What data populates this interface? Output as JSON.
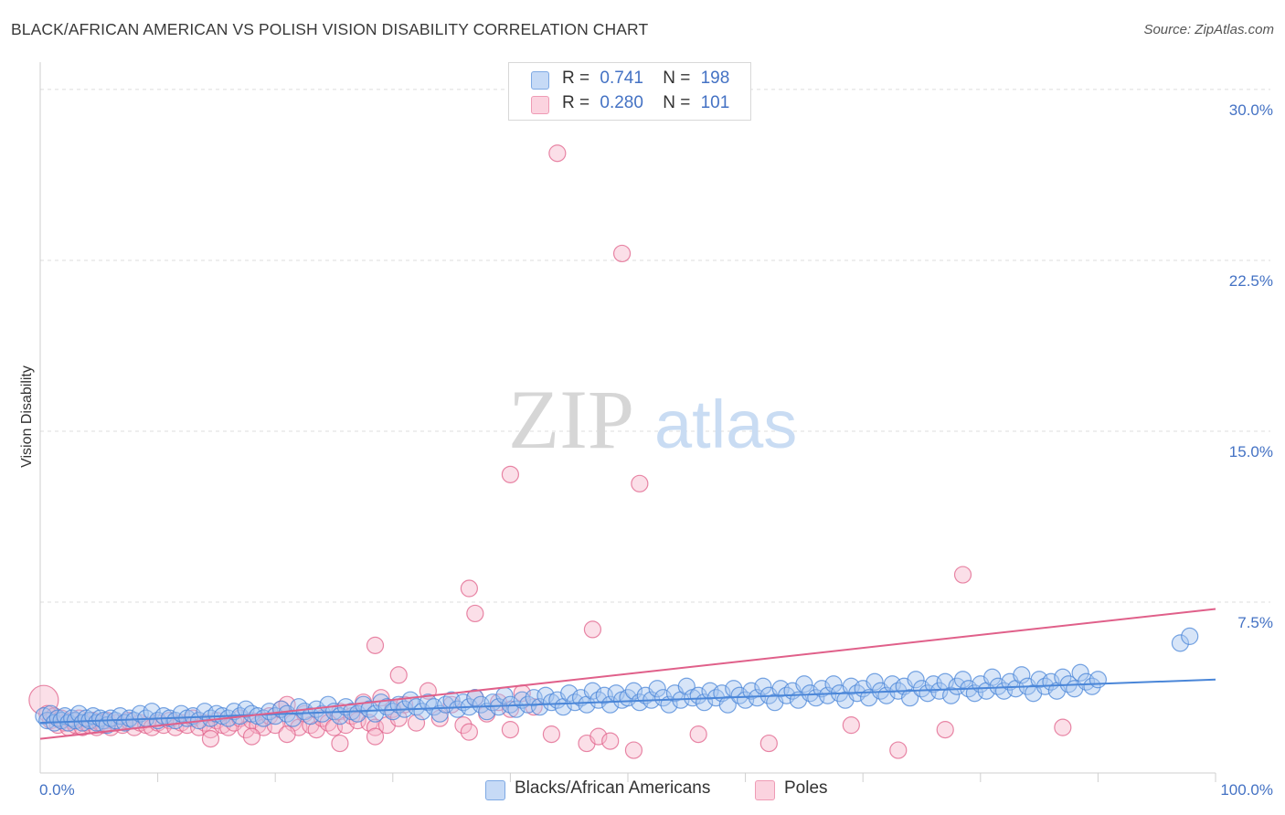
{
  "title": "BLACK/AFRICAN AMERICAN VS POLISH VISION DISABILITY CORRELATION CHART",
  "source": "Source: ZipAtlas.com",
  "watermark": {
    "zip": "ZIP",
    "atlas": "atlas"
  },
  "legend": {
    "rows": [
      {
        "r_label": "R =",
        "r_value": "0.741",
        "n_label": "N =",
        "n_value": "198",
        "color": "#a7c5f0"
      },
      {
        "r_label": "R =",
        "r_value": "0.280",
        "n_label": "N =",
        "n_value": "101",
        "color": "#f6b8cb"
      }
    ]
  },
  "bottom_legend": [
    {
      "label": "Blacks/African Americans",
      "color": "#a7c5f0"
    },
    {
      "label": "Poles",
      "color": "#f6b8cb"
    }
  ],
  "chart_data": {
    "type": "scatter",
    "title": "BLACK/AFRICAN AMERICAN VS POLISH VISION DISABILITY CORRELATION CHART",
    "ylabel": "Vision Disability",
    "xlabel": "",
    "xlim": [
      0,
      100
    ],
    "ylim": [
      0,
      31.2
    ],
    "y_ticks": [
      7.5,
      15.0,
      22.5,
      30.0
    ],
    "y_tick_labels": [
      "7.5%",
      "15.0%",
      "22.5%",
      "30.0%"
    ],
    "x_tick_labels": [
      "0.0%",
      "100.0%"
    ],
    "grid": "horizontal dashed",
    "legend_position": "top-center",
    "series": [
      {
        "name": "Blacks/African Americans",
        "color": "#4a86d8",
        "fill": "#a7c5f0",
        "trend": {
          "x": [
            0,
            100
          ],
          "y": [
            2.2,
            4.1
          ]
        },
        "points": [
          [
            0.3,
            2.5
          ],
          [
            0.6,
            2.3
          ],
          [
            0.9,
            2.6
          ],
          [
            1.2,
            2.2
          ],
          [
            1.5,
            2.4
          ],
          [
            1.8,
            2.3
          ],
          [
            2.1,
            2.5
          ],
          [
            2.4,
            2.2
          ],
          [
            2.7,
            2.4
          ],
          [
            3.0,
            2.3
          ],
          [
            3.3,
            2.6
          ],
          [
            3.6,
            2.2
          ],
          [
            3.9,
            2.4
          ],
          [
            4.2,
            2.3
          ],
          [
            4.5,
            2.5
          ],
          [
            4.8,
            2.2
          ],
          [
            5.1,
            2.4
          ],
          [
            5.4,
            2.3
          ],
          [
            5.7,
            2.1
          ],
          [
            6.0,
            2.4
          ],
          [
            6.4,
            2.3
          ],
          [
            6.8,
            2.5
          ],
          [
            7.2,
            2.2
          ],
          [
            7.6,
            2.4
          ],
          [
            8.0,
            2.3
          ],
          [
            8.5,
            2.6
          ],
          [
            9.0,
            2.4
          ],
          [
            9.5,
            2.7
          ],
          [
            10.0,
            2.3
          ],
          [
            10.5,
            2.5
          ],
          [
            11.0,
            2.4
          ],
          [
            11.5,
            2.3
          ],
          [
            12.0,
            2.6
          ],
          [
            12.5,
            2.4
          ],
          [
            13.0,
            2.5
          ],
          [
            13.5,
            2.3
          ],
          [
            14.0,
            2.7
          ],
          [
            14.5,
            2.4
          ],
          [
            15.0,
            2.6
          ],
          [
            15.5,
            2.5
          ],
          [
            16.0,
            2.4
          ],
          [
            16.5,
            2.7
          ],
          [
            17.0,
            2.5
          ],
          [
            17.5,
            2.8
          ],
          [
            18.0,
            2.6
          ],
          [
            18.5,
            2.5
          ],
          [
            19.0,
            2.4
          ],
          [
            19.5,
            2.7
          ],
          [
            20.0,
            2.5
          ],
          [
            20.5,
            2.8
          ],
          [
            21.0,
            2.6
          ],
          [
            21.5,
            2.4
          ],
          [
            22.0,
            2.9
          ],
          [
            22.5,
            2.7
          ],
          [
            23.0,
            2.5
          ],
          [
            23.5,
            2.8
          ],
          [
            24.0,
            2.6
          ],
          [
            24.5,
            3.0
          ],
          [
            25.0,
            2.7
          ],
          [
            25.5,
            2.5
          ],
          [
            26.0,
            2.9
          ],
          [
            26.5,
            2.7
          ],
          [
            27.0,
            2.6
          ],
          [
            27.5,
            3.0
          ],
          [
            28.0,
            2.8
          ],
          [
            28.5,
            2.6
          ],
          [
            29.0,
            3.1
          ],
          [
            29.5,
            2.9
          ],
          [
            30.0,
            2.7
          ],
          [
            30.5,
            3.0
          ],
          [
            31.0,
            2.8
          ],
          [
            31.5,
            3.2
          ],
          [
            32.0,
            2.9
          ],
          [
            32.5,
            2.7
          ],
          [
            33.0,
            3.1
          ],
          [
            33.5,
            2.9
          ],
          [
            34.0,
            2.6
          ],
          [
            34.5,
            3.0
          ],
          [
            35.0,
            3.2
          ],
          [
            35.5,
            2.8
          ],
          [
            36.0,
            3.1
          ],
          [
            36.5,
            2.9
          ],
          [
            37.0,
            3.3
          ],
          [
            37.5,
            3.0
          ],
          [
            38.0,
            2.7
          ],
          [
            38.5,
            3.1
          ],
          [
            39.0,
            2.9
          ],
          [
            39.5,
            3.4
          ],
          [
            40.0,
            3.0
          ],
          [
            40.5,
            2.8
          ],
          [
            41.0,
            3.2
          ],
          [
            41.5,
            3.0
          ],
          [
            42.0,
            3.3
          ],
          [
            42.5,
            2.9
          ],
          [
            43.0,
            3.4
          ],
          [
            43.5,
            3.1
          ],
          [
            44.0,
            3.2
          ],
          [
            44.5,
            2.9
          ],
          [
            45.0,
            3.5
          ],
          [
            45.5,
            3.1
          ],
          [
            46.0,
            3.3
          ],
          [
            46.5,
            3.0
          ],
          [
            47.0,
            3.6
          ],
          [
            47.5,
            3.2
          ],
          [
            48.0,
            3.4
          ],
          [
            48.5,
            3.0
          ],
          [
            49.0,
            3.5
          ],
          [
            49.5,
            3.2
          ],
          [
            50.0,
            3.3
          ],
          [
            50.5,
            3.6
          ],
          [
            51.0,
            3.1
          ],
          [
            51.5,
            3.4
          ],
          [
            52.0,
            3.2
          ],
          [
            52.5,
            3.7
          ],
          [
            53.0,
            3.3
          ],
          [
            53.5,
            3.0
          ],
          [
            54.0,
            3.5
          ],
          [
            54.5,
            3.2
          ],
          [
            55.0,
            3.8
          ],
          [
            55.5,
            3.3
          ],
          [
            56.0,
            3.4
          ],
          [
            56.5,
            3.1
          ],
          [
            57.0,
            3.6
          ],
          [
            57.5,
            3.3
          ],
          [
            58.0,
            3.5
          ],
          [
            58.5,
            3.0
          ],
          [
            59.0,
            3.7
          ],
          [
            59.5,
            3.4
          ],
          [
            60.0,
            3.2
          ],
          [
            60.5,
            3.6
          ],
          [
            61.0,
            3.3
          ],
          [
            61.5,
            3.8
          ],
          [
            62.0,
            3.4
          ],
          [
            62.5,
            3.1
          ],
          [
            63.0,
            3.7
          ],
          [
            63.5,
            3.4
          ],
          [
            64.0,
            3.6
          ],
          [
            64.5,
            3.2
          ],
          [
            65.0,
            3.9
          ],
          [
            65.5,
            3.5
          ],
          [
            66.0,
            3.3
          ],
          [
            66.5,
            3.7
          ],
          [
            67.0,
            3.4
          ],
          [
            67.5,
            3.9
          ],
          [
            68.0,
            3.5
          ],
          [
            68.5,
            3.2
          ],
          [
            69.0,
            3.8
          ],
          [
            69.5,
            3.5
          ],
          [
            70.0,
            3.7
          ],
          [
            70.5,
            3.3
          ],
          [
            71.0,
            4.0
          ],
          [
            71.5,
            3.6
          ],
          [
            72.0,
            3.4
          ],
          [
            72.5,
            3.9
          ],
          [
            73.0,
            3.6
          ],
          [
            73.5,
            3.8
          ],
          [
            74.0,
            3.3
          ],
          [
            74.5,
            4.1
          ],
          [
            75.0,
            3.7
          ],
          [
            75.5,
            3.5
          ],
          [
            76.0,
            3.9
          ],
          [
            76.5,
            3.6
          ],
          [
            77.0,
            4.0
          ],
          [
            77.5,
            3.4
          ],
          [
            78.0,
            3.8
          ],
          [
            78.5,
            4.1
          ],
          [
            79.0,
            3.7
          ],
          [
            79.5,
            3.5
          ],
          [
            80.0,
            3.9
          ],
          [
            80.5,
            3.6
          ],
          [
            81.0,
            4.2
          ],
          [
            81.5,
            3.8
          ],
          [
            82.0,
            3.6
          ],
          [
            82.5,
            4.0
          ],
          [
            83.0,
            3.7
          ],
          [
            83.5,
            4.3
          ],
          [
            84.0,
            3.8
          ],
          [
            84.5,
            3.5
          ],
          [
            85.0,
            4.1
          ],
          [
            85.5,
            3.8
          ],
          [
            86.0,
            4.0
          ],
          [
            86.5,
            3.6
          ],
          [
            87.0,
            4.2
          ],
          [
            87.5,
            3.9
          ],
          [
            88.0,
            3.7
          ],
          [
            88.5,
            4.4
          ],
          [
            89.0,
            4.0
          ],
          [
            89.5,
            3.8
          ],
          [
            90.0,
            4.1
          ],
          [
            97.0,
            5.7
          ],
          [
            97.8,
            6.0
          ]
        ]
      },
      {
        "name": "Poles",
        "color": "#e0608a",
        "fill": "#f6b8cb",
        "trend": {
          "x": [
            0,
            100
          ],
          "y": [
            1.5,
            7.2
          ]
        },
        "points": [
          [
            0.3,
            3.2
          ],
          [
            0.6,
            2.6
          ],
          [
            0.9,
            2.3
          ],
          [
            1.2,
            2.5
          ],
          [
            1.5,
            2.1
          ],
          [
            1.8,
            2.4
          ],
          [
            2.1,
            2.2
          ],
          [
            2.4,
            2.0
          ],
          [
            2.7,
            2.3
          ],
          [
            3.0,
            2.1
          ],
          [
            3.3,
            2.4
          ],
          [
            3.6,
            2.0
          ],
          [
            3.9,
            2.2
          ],
          [
            4.2,
            2.1
          ],
          [
            4.5,
            2.3
          ],
          [
            4.8,
            2.0
          ],
          [
            5.1,
            2.2
          ],
          [
            5.4,
            2.1
          ],
          [
            5.7,
            2.3
          ],
          [
            6.0,
            2.0
          ],
          [
            6.5,
            2.2
          ],
          [
            7.0,
            2.1
          ],
          [
            7.5,
            2.3
          ],
          [
            8.0,
            2.0
          ],
          [
            8.5,
            2.2
          ],
          [
            9.0,
            2.1
          ],
          [
            9.5,
            2.0
          ],
          [
            10.0,
            2.2
          ],
          [
            10.5,
            2.1
          ],
          [
            11.0,
            2.3
          ],
          [
            11.5,
            2.0
          ],
          [
            12.0,
            2.2
          ],
          [
            12.5,
            2.1
          ],
          [
            13.0,
            2.4
          ],
          [
            13.5,
            2.0
          ],
          [
            14.0,
            2.2
          ],
          [
            14.5,
            1.9
          ],
          [
            15.0,
            2.3
          ],
          [
            15.5,
            2.1
          ],
          [
            16.0,
            2.0
          ],
          [
            16.5,
            2.2
          ],
          [
            17.0,
            2.4
          ],
          [
            17.5,
            1.9
          ],
          [
            18.0,
            2.3
          ],
          [
            18.5,
            2.1
          ],
          [
            19.0,
            2.0
          ],
          [
            19.5,
            2.5
          ],
          [
            20.0,
            2.1
          ],
          [
            20.5,
            2.8
          ],
          [
            21.0,
            3.0
          ],
          [
            21.5,
            2.2
          ],
          [
            22.0,
            2.0
          ],
          [
            22.5,
            2.6
          ],
          [
            23.0,
            2.1
          ],
          [
            23.5,
            1.9
          ],
          [
            24.0,
            2.4
          ],
          [
            24.5,
            2.2
          ],
          [
            25.0,
            2.0
          ],
          [
            25.5,
            2.7
          ],
          [
            26.0,
            2.1
          ],
          [
            26.5,
            2.5
          ],
          [
            27.0,
            2.3
          ],
          [
            27.5,
            3.1
          ],
          [
            28.0,
            2.2
          ],
          [
            28.5,
            2.0
          ],
          [
            29.0,
            3.3
          ],
          [
            29.5,
            2.1
          ],
          [
            30.0,
            2.8
          ],
          [
            30.5,
            2.4
          ],
          [
            31.0,
            3.0
          ],
          [
            32.0,
            2.2
          ],
          [
            33.0,
            3.6
          ],
          [
            34.0,
            2.4
          ],
          [
            35.0,
            3.0
          ],
          [
            36.0,
            2.1
          ],
          [
            37.0,
            3.3
          ],
          [
            38.0,
            2.6
          ],
          [
            39.0,
            3.1
          ],
          [
            40.0,
            2.8
          ],
          [
            41.0,
            3.5
          ],
          [
            42.0,
            2.9
          ],
          [
            43.5,
            1.7
          ],
          [
            46.5,
            1.3
          ],
          [
            47.5,
            1.6
          ],
          [
            48.5,
            1.4
          ],
          [
            14.5,
            1.5
          ],
          [
            18.0,
            1.6
          ],
          [
            21.0,
            1.7
          ],
          [
            28.5,
            1.6
          ],
          [
            36.5,
            1.8
          ],
          [
            25.5,
            1.3
          ],
          [
            40.0,
            1.9
          ],
          [
            50.5,
            1.0
          ],
          [
            56.0,
            1.7
          ],
          [
            62.0,
            1.3
          ],
          [
            73.0,
            1.0
          ],
          [
            77.0,
            1.9
          ],
          [
            69.0,
            2.1
          ],
          [
            87.0,
            2.0
          ],
          [
            28.5,
            5.6
          ],
          [
            30.5,
            4.3
          ],
          [
            36.5,
            8.1
          ],
          [
            37.0,
            7.0
          ],
          [
            47.0,
            6.3
          ],
          [
            44.0,
            27.2
          ],
          [
            49.5,
            22.8
          ],
          [
            40.0,
            13.1
          ],
          [
            51.0,
            12.7
          ],
          [
            78.5,
            8.7
          ]
        ]
      }
    ]
  }
}
